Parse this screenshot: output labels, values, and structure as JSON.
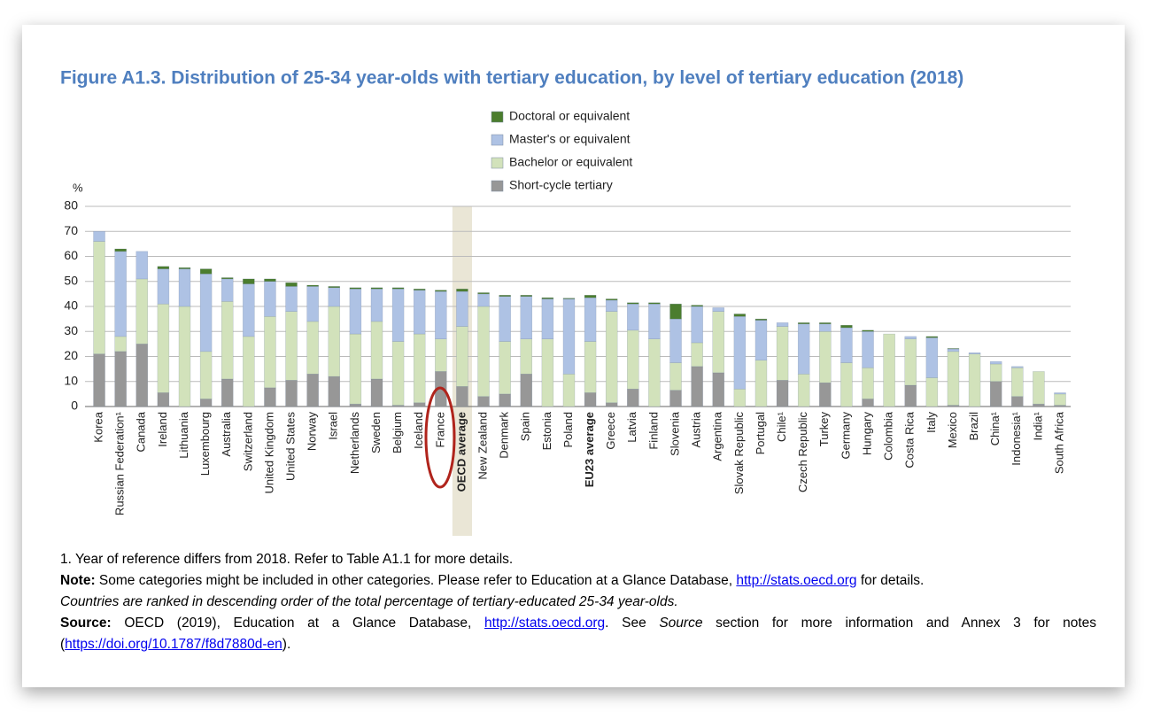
{
  "chart_data": {
    "type": "stacked_bar",
    "title": "Figure A1.3. Distribution of 25-34 year-olds with tertiary education, by level of tertiary education (2018)",
    "y_label": "%",
    "categories": [
      "Korea",
      "Russian Federation¹",
      "Canada",
      "Ireland",
      "Lithuania",
      "Luxembourg",
      "Australia",
      "Switzerland",
      "United Kingdom",
      "United States",
      "Norway",
      "Israel",
      "Netherlands",
      "Sweden",
      "Belgium",
      "Iceland",
      "France",
      "OECD average",
      "New Zealand",
      "Denmark",
      "Spain",
      "Estonia",
      "Poland",
      "EU23 average",
      "Greece",
      "Latvia",
      "Finland",
      "Slovenia",
      "Austria",
      "Argentina",
      "Slovak Republic",
      "Portugal",
      "Chile¹",
      "Czech Republic",
      "Turkey",
      "Germany",
      "Hungary",
      "Colombia",
      "Costa Rica",
      "Italy",
      "Mexico",
      "Brazil",
      "China¹",
      "Indonesia¹",
      "India¹",
      "South Africa"
    ],
    "emphasized_categories": [
      17,
      23
    ],
    "shaded_category": 17,
    "series": [
      {
        "name": "Short-cycle tertiary",
        "color": "#979797",
        "values": [
          21,
          22,
          25,
          5.5,
          0,
          3,
          11,
          0,
          7.5,
          10.5,
          13,
          12,
          1,
          11,
          0.5,
          1.5,
          14,
          8,
          4,
          5,
          13,
          0,
          0,
          5.5,
          1.5,
          7,
          0,
          6.5,
          16,
          13.5,
          0,
          0,
          10.5,
          0,
          9.5,
          0,
          3,
          0,
          8.5,
          0,
          0.5,
          0,
          10,
          4,
          1,
          0.5
        ]
      },
      {
        "name": "Bachelor or equivalent",
        "color": "#d2e2bb",
        "values": [
          45,
          6,
          26,
          35.5,
          40,
          19,
          31,
          28,
          28.5,
          27.5,
          21,
          28,
          28,
          23,
          25.5,
          27.5,
          13,
          24,
          36,
          21,
          14,
          27,
          13,
          20.5,
          36.5,
          23.5,
          27,
          11,
          9.5,
          24.5,
          7,
          18.5,
          21.5,
          13,
          20.5,
          17.5,
          12.5,
          29,
          18.5,
          11.5,
          21.5,
          21,
          7,
          11.5,
          13,
          4.5
        ]
      },
      {
        "name": "Master's or equivalent",
        "color": "#aec2e4",
        "values": [
          4,
          34,
          11,
          14,
          15,
          31,
          9,
          21,
          14,
          10,
          14,
          7.5,
          18,
          13,
          21,
          17.5,
          19,
          14,
          5,
          18,
          17,
          16,
          30,
          17.5,
          4.5,
          10.5,
          14,
          17.5,
          14.5,
          1.5,
          29,
          16,
          1.5,
          20,
          3,
          14,
          14.5,
          0,
          1,
          16,
          1,
          0.5,
          1,
          0.5,
          0,
          0.5
        ]
      },
      {
        "name": "Doctoral or equivalent",
        "color": "#4b7d2e",
        "values": [
          0,
          1,
          0,
          1,
          0.5,
          2,
          0.5,
          2,
          1,
          1.5,
          0.5,
          0.5,
          0.5,
          0.5,
          0.5,
          0.5,
          0.5,
          1,
          0.5,
          0.5,
          0.5,
          0.5,
          0.3,
          1,
          0.5,
          0.5,
          0.5,
          6,
          0.5,
          0,
          1,
          0.5,
          0,
          0.5,
          0.5,
          1,
          0.5,
          0,
          0,
          0.5,
          0.2,
          0,
          0,
          0,
          0,
          0
        ]
      }
    ],
    "ylim": [
      0,
      80
    ],
    "yticks": [
      0,
      10,
      20,
      30,
      40,
      50,
      60,
      70,
      80
    ],
    "grid": true
  },
  "notes": {
    "footnote": "1. Year of reference differs from 2018. Refer to Table A1.1 for more details.",
    "note": {
      "label": "Note:",
      "text": " Some categories might be included in other categories. Please refer to Education at a Glance Database, ",
      "link": "http://stats.oecd.org",
      "after": " for details."
    },
    "ranking": "Countries are ranked in descending order of the total percentage of tertiary-educated 25-34 year-olds.",
    "source": {
      "label": "Source:",
      "text": " OECD (2019), Education at a Glance Database, ",
      "link": "http://stats.oecd.org",
      "text2": ". See ",
      "italic": "Source",
      "text3": " section for more information and Annex 3 for notes (",
      "link2": "https://doi.org/10.1787/f8d7880d-en",
      "after": ")."
    }
  }
}
